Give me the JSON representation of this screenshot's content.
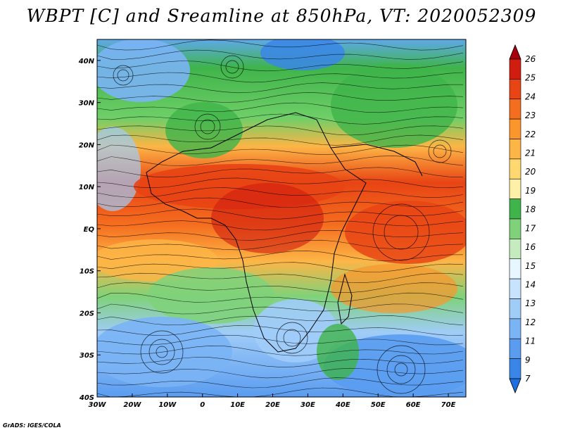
{
  "title": "WBPT [C] and Sreamline at 850hPa, VT: 2020052309",
  "credit": "GrADS: IGES/COLA",
  "map": {
    "lat_labels": [
      {
        "lat": 40,
        "label": "40N"
      },
      {
        "lat": 30,
        "label": "30N"
      },
      {
        "lat": 20,
        "label": "20N"
      },
      {
        "lat": 10,
        "label": "10N"
      },
      {
        "lat": 0,
        "label": "EQ"
      },
      {
        "lat": -10,
        "label": "10S"
      },
      {
        "lat": -20,
        "label": "20S"
      },
      {
        "lat": -30,
        "label": "30S"
      },
      {
        "lat": -40,
        "label": "40S"
      }
    ],
    "lon_labels": [
      {
        "lon": -30,
        "label": "30W"
      },
      {
        "lon": -20,
        "label": "20W"
      },
      {
        "lon": -10,
        "label": "10W"
      },
      {
        "lon": 0,
        "label": "0"
      },
      {
        "lon": 10,
        "label": "10E"
      },
      {
        "lon": 20,
        "label": "20E"
      },
      {
        "lon": 30,
        "label": "30E"
      },
      {
        "lon": 40,
        "label": "40E"
      },
      {
        "lon": 50,
        "label": "50E"
      },
      {
        "lon": 60,
        "label": "60E"
      },
      {
        "lon": 70,
        "label": "70E"
      }
    ],
    "lon_range": [
      -30,
      75
    ],
    "lat_range": [
      -40,
      45
    ]
  },
  "colorbar": {
    "levels": [
      "7",
      "9",
      "11",
      "12",
      "13",
      "14",
      "15",
      "16",
      "17",
      "18",
      "19",
      "20",
      "21",
      "22",
      "23",
      "24",
      "25",
      "26"
    ],
    "colors": [
      "#1e6fe0",
      "#3a86e8",
      "#5a9cf0",
      "#7ab4f5",
      "#a0ccf8",
      "#c8e4fc",
      "#e8f7ff",
      "#c4ecbf",
      "#7fd27a",
      "#3fb44a",
      "#fff0a8",
      "#ffd870",
      "#fdb546",
      "#fb962c",
      "#f56e1f",
      "#e84414",
      "#d11d0f",
      "#a8000c"
    ]
  }
}
